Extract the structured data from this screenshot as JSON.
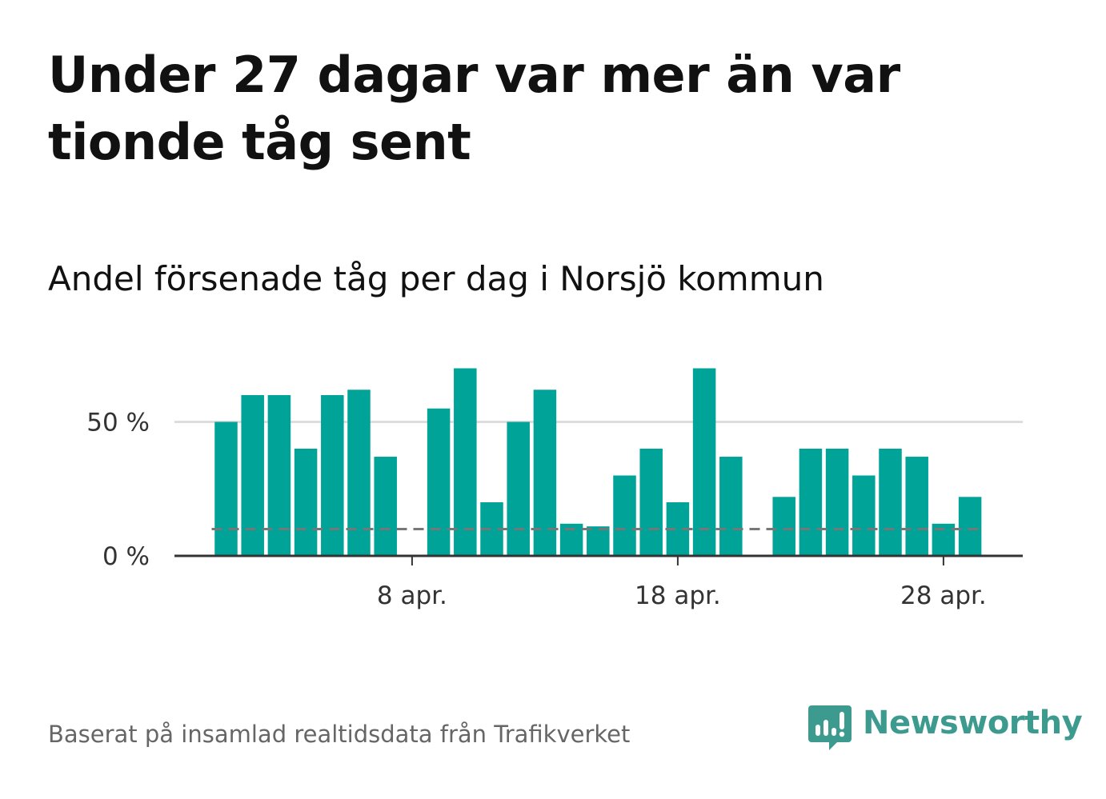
{
  "header": {
    "title": "Under 27 dagar var mer än var tionde tåg sent",
    "subtitle": "Andel försenade tåg per dag i Norsjö kommun"
  },
  "footer": {
    "source": "Baserat på insamlad realtidsdata från Trafikverket",
    "brand": "Newsworthy"
  },
  "colors": {
    "bar": "#00a398",
    "gridline": "#dddddd",
    "axis": "#333333",
    "reference_line": "#777777",
    "brand": "#3d9a8e"
  },
  "chart_data": {
    "type": "bar",
    "title": "Andel försenade tåg per dag i Norsjö kommun",
    "xlabel": "",
    "ylabel": "",
    "categories": [
      "1 apr.",
      "2 apr.",
      "3 apr.",
      "4 apr.",
      "5 apr.",
      "6 apr.",
      "7 apr.",
      "8 apr.",
      "9 apr.",
      "10 apr.",
      "11 apr.",
      "12 apr.",
      "13 apr.",
      "14 apr.",
      "15 apr.",
      "16 apr.",
      "17 apr.",
      "18 apr.",
      "19 apr.",
      "20 apr.",
      "21 apr.",
      "22 apr.",
      "23 apr.",
      "24 apr.",
      "25 apr.",
      "26 apr.",
      "27 apr.",
      "28 apr.",
      "29 apr."
    ],
    "values": [
      50,
      60,
      60,
      40,
      60,
      62,
      37,
      null,
      55,
      70,
      20,
      50,
      62,
      12,
      11,
      30,
      40,
      20,
      70,
      37,
      null,
      22,
      40,
      40,
      30,
      40,
      37,
      12,
      22
    ],
    "unit": "%",
    "ylim": [
      0,
      75
    ],
    "y_ticks": [
      {
        "value": 0,
        "label": "0 %"
      },
      {
        "value": 50,
        "label": "50 %"
      }
    ],
    "x_ticks": [
      {
        "index": 7,
        "label": "8 apr."
      },
      {
        "index": 17,
        "label": "18 apr."
      },
      {
        "index": 27,
        "label": "28 apr."
      }
    ],
    "reference_line": {
      "value": 10,
      "style": "dashed"
    },
    "grid": true,
    "legend": "none"
  }
}
